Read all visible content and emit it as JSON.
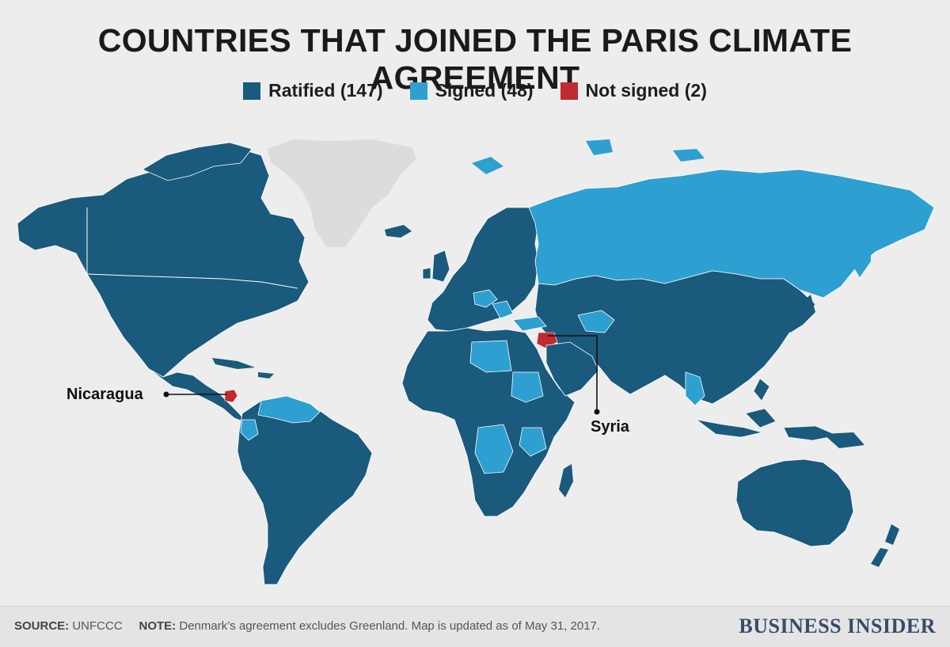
{
  "title": "COUNTRIES THAT JOINED THE PARIS CLIMATE AGREEMENT",
  "legend": [
    {
      "label": "Ratified (147)",
      "color": "#1a5a7c"
    },
    {
      "label": "Signed (48)",
      "color": "#2e9fd1"
    },
    {
      "label": "Not signed (2)",
      "color": "#c0292d"
    }
  ],
  "colors": {
    "ratified": "#1a5a7c",
    "signed": "#2e9fd1",
    "not_signed": "#c0292d",
    "no_data": "#dcdcdc",
    "background": "#ededed"
  },
  "callouts": {
    "nicaragua": "Nicaragua",
    "syria": "Syria"
  },
  "footer": {
    "source_label": "SOURCE:",
    "source_value": "UNFCCC",
    "note_label": "NOTE:",
    "note_value": "Denmark’s agreement excludes Greenland. Map is updated as of May 31, 2017."
  },
  "brand": "BUSINESS INSIDER"
}
